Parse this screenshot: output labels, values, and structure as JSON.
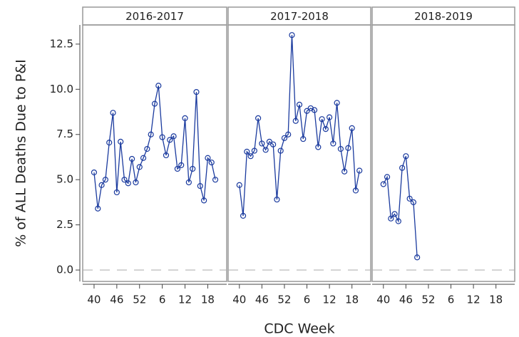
{
  "chart_data": [
    {
      "type": "line",
      "title": "2016-2017",
      "ylabel": "% of ALL Deaths Due to P&I",
      "categories": [
        "40",
        null,
        null,
        null,
        null,
        null,
        "46",
        null,
        null,
        null,
        null,
        null,
        "52",
        null,
        null,
        null,
        null,
        null,
        "6",
        null,
        null,
        null,
        null,
        null,
        "12",
        null,
        null,
        null,
        null,
        null,
        "18",
        null,
        null,
        null,
        null
      ],
      "values": [
        5.4,
        3.4,
        4.7,
        5.0,
        7.05,
        8.7,
        4.3,
        7.1,
        5.0,
        4.8,
        6.15,
        4.85,
        5.7,
        6.2,
        6.7,
        7.5,
        9.2,
        10.2,
        7.35,
        6.35,
        7.2,
        7.4,
        5.6,
        5.8,
        8.4,
        4.85,
        5.6,
        9.85,
        4.65,
        3.85,
        6.2,
        5.95,
        5.0,
        null,
        null
      ],
      "color": "#1a3a9e",
      "ylim": [
        -0.63,
        13.56
      ],
      "yticks": [
        {
          "value": 0,
          "label": "0.0"
        },
        2.5,
        {
          "value": 5,
          "label": "5.0"
        },
        7.5,
        {
          "value": 10,
          "label": "10.0"
        },
        12.5
      ],
      "reference_line": 0
    },
    {
      "type": "line",
      "title": "2017-2018",
      "xlabel": "CDC Week",
      "categories": [
        "40",
        null,
        null,
        null,
        null,
        null,
        "46",
        null,
        null,
        null,
        null,
        null,
        "52",
        null,
        null,
        null,
        null,
        null,
        "6",
        null,
        null,
        null,
        null,
        null,
        "12",
        null,
        null,
        null,
        null,
        null,
        "18",
        null,
        null,
        null,
        null
      ],
      "values": [
        4.7,
        3.0,
        6.55,
        6.3,
        6.6,
        8.4,
        7.0,
        6.65,
        7.1,
        6.95,
        3.9,
        6.6,
        7.3,
        7.5,
        13.0,
        8.25,
        9.15,
        7.25,
        8.8,
        8.95,
        8.85,
        6.8,
        8.35,
        7.8,
        8.45,
        7.0,
        9.25,
        6.7,
        5.45,
        6.75,
        7.85,
        4.4,
        5.5,
        null,
        null
      ],
      "color": "#1a3a9e",
      "reference_line": 0
    },
    {
      "type": "line",
      "title": "2018-2019",
      "categories": [
        "40",
        null,
        null,
        null,
        null,
        null,
        "46",
        null,
        null,
        null,
        null,
        null,
        "52",
        null,
        null,
        null,
        null,
        null,
        "6",
        null,
        null,
        null,
        null,
        null,
        "12",
        null,
        null,
        null,
        null,
        null,
        "18",
        null,
        null,
        null,
        null
      ],
      "values": [
        4.75,
        5.15,
        2.85,
        3.1,
        2.7,
        5.65,
        6.3,
        3.95,
        3.75,
        0.7,
        null,
        null,
        null,
        null,
        null,
        null,
        null,
        null,
        null,
        null,
        null,
        null,
        null,
        null,
        null,
        null,
        null,
        null,
        null,
        null,
        null,
        null,
        null,
        null,
        null
      ],
      "color": "#1a3a9e",
      "reference_line": 0
    }
  ]
}
